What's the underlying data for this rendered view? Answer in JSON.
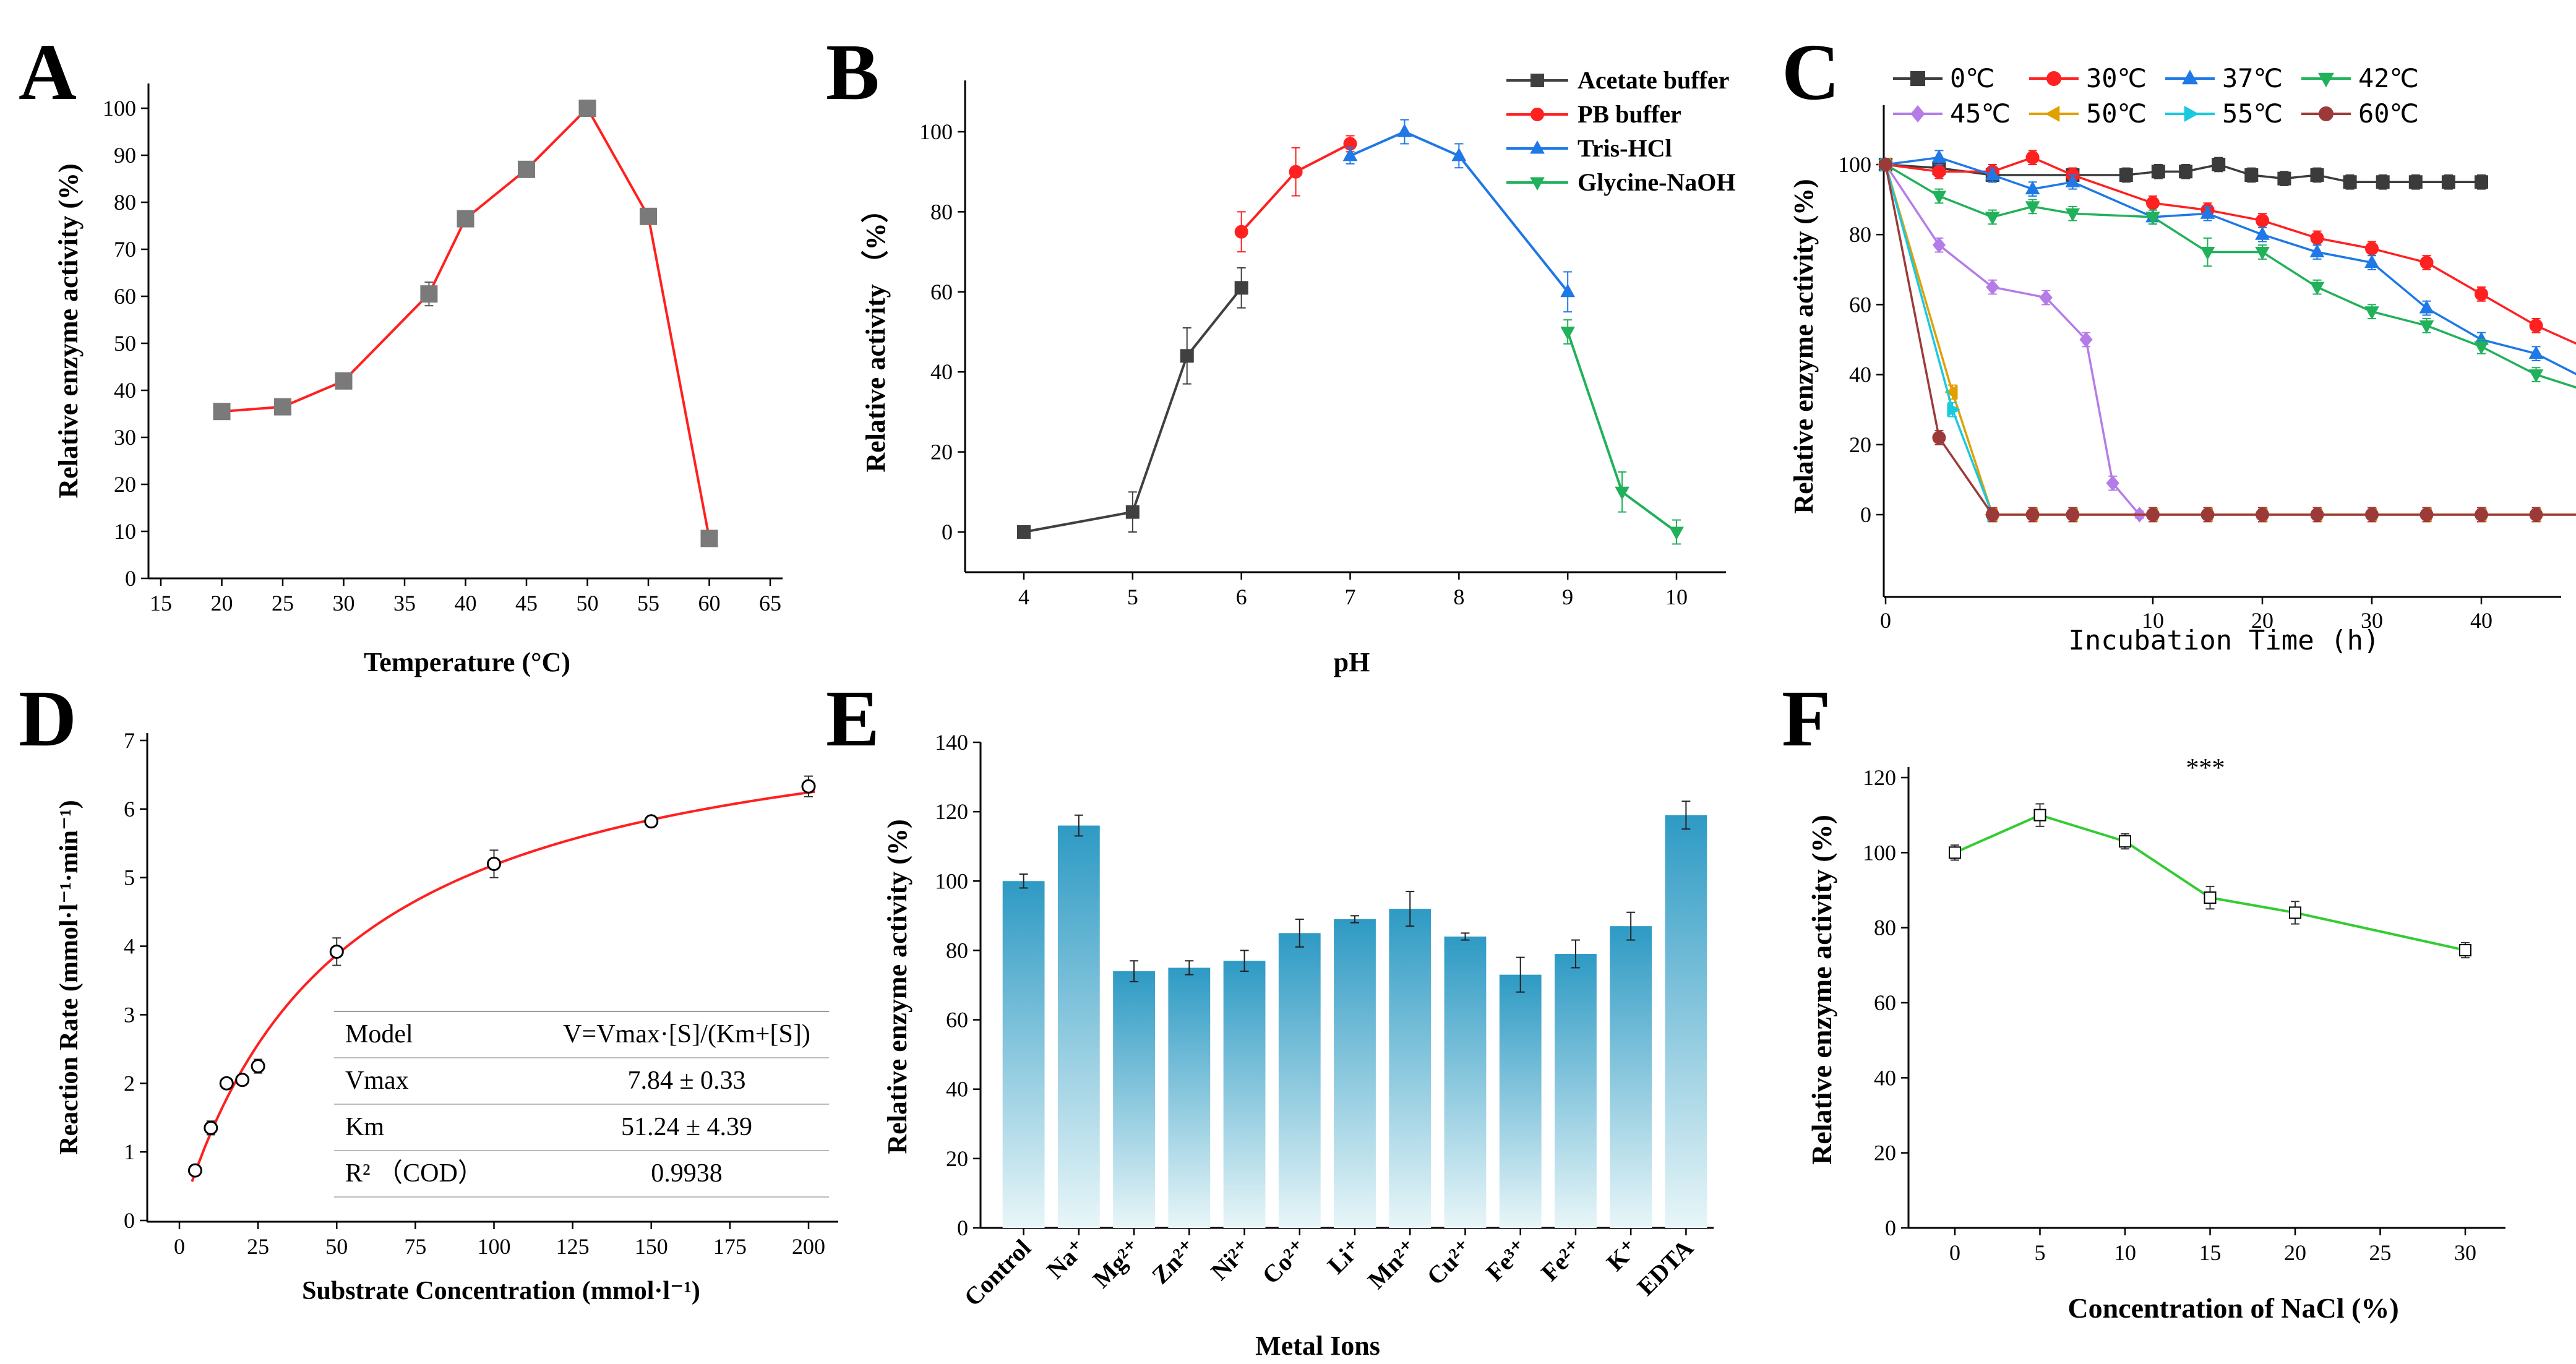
{
  "colors": {
    "black": "#000000",
    "red": "#ff2020",
    "blue": "#1e78e6",
    "green": "#21b15a",
    "purple": "#b57ce8",
    "orange": "#e0a000",
    "cyan": "#19c9e0",
    "brown": "#9c3a3a",
    "gray": "#404040",
    "lime": "#33cc33",
    "bar_top": "#2e9ac4",
    "bar_bottom": "#e8f6f8"
  },
  "chart_data": [
    {
      "panel": "A",
      "type": "line",
      "xlabel": "Temperature (°C)",
      "ylabel": "Relative enzyme activity (%)",
      "xlim": [
        15,
        65
      ],
      "ylim": [
        0,
        105
      ],
      "xticks": [
        "15",
        "20",
        "25",
        "30",
        "35",
        "40",
        "45",
        "50",
        "55",
        "60",
        "65"
      ],
      "yticks": [
        "0",
        "10",
        "20",
        "30",
        "40",
        "50",
        "60",
        "70",
        "80",
        "90",
        "100"
      ],
      "series": [
        {
          "name": "activity",
          "x": [
            20,
            25,
            30,
            37,
            40,
            45,
            50,
            55,
            60
          ],
          "y": [
            35.5,
            36.5,
            42,
            60.5,
            76.5,
            87,
            100,
            77,
            8.5
          ],
          "err": [
            1,
            1.5,
            1,
            2.5,
            1,
            1,
            1.5,
            1,
            0.8
          ]
        }
      ]
    },
    {
      "panel": "B",
      "type": "line",
      "xlabel": "pH",
      "ylabel": "Relative activity （%）",
      "xlim": [
        3.5,
        10.3
      ],
      "ylim": [
        -10,
        105
      ],
      "xticks": [
        "4",
        "5",
        "6",
        "7",
        "8",
        "9",
        "10"
      ],
      "yticks": [
        "0",
        "20",
        "40",
        "60",
        "80",
        "100"
      ],
      "series": [
        {
          "name": "Acetate buffer",
          "marker": "square",
          "x": [
            4,
            5,
            5.5,
            6
          ],
          "y": [
            0,
            5,
            44,
            61
          ],
          "err": [
            0,
            5,
            7,
            5
          ]
        },
        {
          "name": "PB buffer",
          "marker": "circle",
          "x": [
            6,
            6.5,
            7
          ],
          "y": [
            75,
            90,
            97
          ],
          "err": [
            5,
            6,
            2
          ]
        },
        {
          "name": "Tris-HCl",
          "marker": "triangle",
          "x": [
            7,
            7.5,
            8,
            9
          ],
          "y": [
            94,
            100,
            94,
            60
          ],
          "err": [
            2,
            3,
            3,
            5
          ]
        },
        {
          "name": "Glycine-NaOH",
          "marker": "triangle-down",
          "x": [
            9,
            9.5,
            10
          ],
          "y": [
            50,
            10,
            0
          ],
          "err": [
            3,
            5,
            3
          ]
        }
      ]
    },
    {
      "panel": "C",
      "type": "line",
      "xlabel": "Incubation Time (h)",
      "ylabel": "Relative enzyme activity (%)",
      "xlim": [
        0,
        62
      ],
      "ylim": [
        -15,
        110
      ],
      "xticks": [
        "0",
        "10",
        "20",
        "30",
        "40",
        "50",
        "60"
      ],
      "yticks": [
        "0",
        "20",
        "40",
        "60",
        "80",
        "100"
      ],
      "series": [
        {
          "name": "0℃",
          "marker": "square",
          "x": [
            0,
            2,
            4,
            7,
            9,
            10.5,
            13,
            16,
            19,
            22,
            25,
            28,
            31,
            34,
            37,
            40
          ],
          "y": [
            100,
            99,
            97,
            97,
            97,
            98,
            98,
            100,
            97,
            96,
            97,
            95,
            95,
            95,
            95,
            95
          ],
          "err": [
            1,
            2,
            2,
            2,
            2,
            2,
            2,
            2,
            2,
            2,
            2,
            2,
            2,
            2,
            2,
            2
          ]
        },
        {
          "name": "30℃",
          "marker": "circle",
          "x": [
            0,
            2,
            4,
            5.5,
            7,
            10,
            15,
            20,
            25,
            30,
            35,
            40,
            45,
            50
          ],
          "y": [
            100,
            98,
            98,
            102,
            97,
            89,
            87,
            84,
            79,
            76,
            72,
            63,
            54,
            47
          ],
          "err": [
            1,
            2,
            2,
            2,
            2,
            2,
            2,
            2,
            2,
            2,
            2,
            2,
            2,
            2
          ]
        },
        {
          "name": "37℃",
          "marker": "triangle",
          "x": [
            0,
            2,
            4,
            5.5,
            7,
            10,
            15,
            20,
            25,
            30,
            35,
            40,
            45,
            50
          ],
          "y": [
            100,
            102,
            97,
            93,
            95,
            85,
            86,
            80,
            75,
            72,
            59,
            50,
            46,
            38
          ],
          "err": [
            1,
            2,
            2,
            2,
            2,
            2,
            2,
            2,
            2,
            2,
            2,
            2,
            2,
            2
          ]
        },
        {
          "name": "42℃",
          "marker": "triangle-down",
          "x": [
            0,
            2,
            4,
            5.5,
            7,
            10,
            15,
            20,
            25,
            30,
            35,
            40,
            45,
            50
          ],
          "y": [
            100,
            91,
            85,
            88,
            86,
            85,
            75,
            75,
            65,
            58,
            54,
            48,
            40,
            35
          ],
          "err": [
            1,
            2,
            2,
            2,
            2,
            2,
            4,
            2,
            2,
            2,
            2,
            2,
            2,
            2
          ]
        },
        {
          "name": "45℃",
          "marker": "diamond",
          "x": [
            0,
            2,
            4,
            6,
            7.5,
            8.5,
            9.5
          ],
          "y": [
            100,
            77,
            65,
            62,
            50,
            9,
            0
          ],
          "err": [
            1,
            2,
            2,
            2,
            2,
            2,
            1
          ]
        },
        {
          "name": "50℃",
          "marker": "triangle-left",
          "x": [
            0,
            2.5,
            4,
            5.5,
            7,
            10,
            15,
            20,
            25,
            30,
            35,
            40,
            45,
            50
          ],
          "y": [
            100,
            35,
            0,
            0,
            0,
            0,
            0,
            0,
            0,
            0,
            0,
            0,
            0,
            0
          ],
          "err": [
            1,
            2,
            2,
            2,
            2,
            2,
            2,
            2,
            2,
            2,
            2,
            2,
            2,
            2
          ]
        },
        {
          "name": "55℃",
          "marker": "triangle-right",
          "x": [
            0,
            2.5,
            4
          ],
          "y": [
            100,
            30,
            0
          ],
          "err": [
            1,
            2,
            1
          ]
        },
        {
          "name": "60℃",
          "marker": "circle",
          "x": [
            0,
            2,
            4,
            5.5,
            7,
            10,
            15,
            20,
            25,
            30,
            35,
            40,
            45,
            50
          ],
          "y": [
            100,
            22,
            0,
            0,
            0,
            0,
            0,
            0,
            0,
            0,
            0,
            0,
            0,
            0
          ],
          "err": [
            1,
            2,
            2,
            2,
            2,
            2,
            2,
            2,
            2,
            2,
            2,
            2,
            2,
            2
          ]
        }
      ]
    },
    {
      "panel": "D",
      "type": "scatter",
      "xlabel": "Substrate Concentration (mmol·l⁻¹)",
      "ylabel": "Reaction Rate (mmol·l⁻¹·min⁻¹)",
      "xlim": [
        -10,
        210
      ],
      "ylim": [
        0,
        7
      ],
      "xticks": [
        "0",
        "25",
        "50",
        "75",
        "100",
        "125",
        "150",
        "175",
        "200"
      ],
      "yticks": [
        "0",
        "1",
        "2",
        "3",
        "4",
        "5",
        "6",
        "7"
      ],
      "points": {
        "x": [
          5,
          10,
          15,
          20,
          25,
          50,
          100,
          150,
          200
        ],
        "y": [
          0.73,
          1.35,
          2.0,
          2.05,
          2.25,
          3.92,
          5.2,
          5.82,
          6.33
        ],
        "err": [
          0.05,
          0.1,
          0.05,
          0.05,
          0.1,
          0.2,
          0.2,
          0.05,
          0.15
        ]
      },
      "fit": {
        "vmax": 7.84,
        "km": 51.24
      },
      "table": [
        {
          "label": "Model",
          "value": "V=Vmax·[S]/(Km+[S])"
        },
        {
          "label": "Vmax",
          "value": "7.84 ± 0.33"
        },
        {
          "label": "Km",
          "value": "51.24 ± 4.39"
        },
        {
          "label": "R² （COD）",
          "value": "0.9938"
        }
      ]
    },
    {
      "panel": "E",
      "type": "bar",
      "xlabel": "Metal Ions",
      "ylabel": "Relative enzyme activity (%)",
      "ylim": [
        0,
        140
      ],
      "yticks": [
        "0",
        "20",
        "40",
        "60",
        "80",
        "100",
        "120",
        "140"
      ],
      "categories": [
        "Control",
        "Na⁺",
        "Mg²⁺",
        "Zn²⁺",
        "Ni²⁺",
        "Co²⁺",
        "Li⁺",
        "Mn²⁺",
        "Cu²⁺",
        "Fe³⁺",
        "Fe²⁺",
        "K⁺",
        "EDTA"
      ],
      "values": [
        100,
        116,
        74,
        75,
        77,
        85,
        89,
        92,
        84,
        73,
        79,
        87,
        119
      ],
      "err": [
        2,
        3,
        3,
        2,
        3,
        4,
        1,
        5,
        1,
        5,
        4,
        4,
        4
      ]
    },
    {
      "panel": "F",
      "type": "line",
      "xlabel": "Concentration of NaCl (%)",
      "ylabel": "Relative enzyme activity (%)",
      "xlim": [
        -3,
        33
      ],
      "ylim": [
        0,
        120
      ],
      "xticks": [
        "0",
        "5",
        "10",
        "15",
        "20",
        "25",
        "30"
      ],
      "yticks": [
        "0",
        "20",
        "40",
        "60",
        "80",
        "100",
        "120"
      ],
      "annotation": "***",
      "series": [
        {
          "name": "NaCl",
          "x": [
            0,
            5,
            10,
            15,
            20,
            30
          ],
          "y": [
            100,
            110,
            103,
            88,
            84,
            74
          ],
          "err": [
            2,
            3,
            2,
            3,
            3,
            2
          ]
        }
      ]
    }
  ],
  "panel_letters": [
    "A",
    "B",
    "C",
    "D",
    "E",
    "F"
  ]
}
